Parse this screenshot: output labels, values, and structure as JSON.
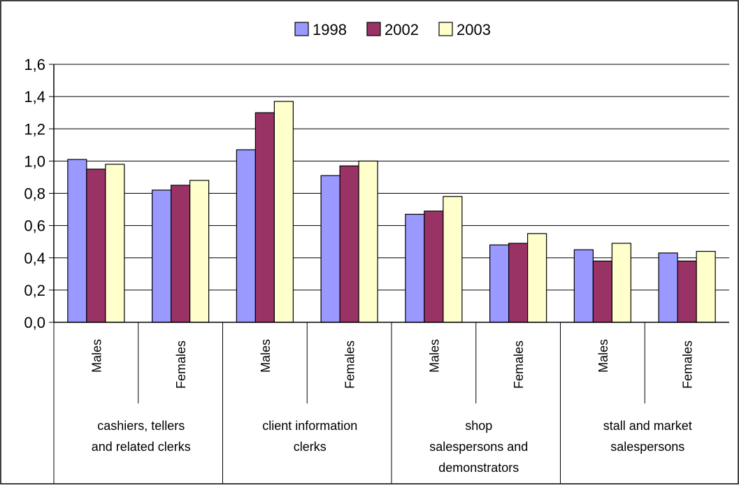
{
  "chart_data": {
    "type": "bar",
    "title": "",
    "xlabel": "",
    "ylabel": "",
    "ylim": [
      0,
      1.6
    ],
    "y_ticks": [
      "0,0",
      "0,2",
      "0,4",
      "0,6",
      "0,8",
      "1,0",
      "1,2",
      "1,4",
      "1,6"
    ],
    "grid": "horizontal",
    "legend_position": "top",
    "groups": [
      {
        "label_lines": [
          "cashiers, tellers",
          "and related clerks"
        ]
      },
      {
        "label_lines": [
          "client information",
          "clerks"
        ]
      },
      {
        "label_lines": [
          "shop",
          "salespersons and",
          "demonstrators"
        ]
      },
      {
        "label_lines": [
          "stall and market",
          "salespersons"
        ]
      }
    ],
    "categories": [
      "Males",
      "Females",
      "Males",
      "Females",
      "Males",
      "Females",
      "Males",
      "Females"
    ],
    "series": [
      {
        "name": "1998",
        "color": "#9999ff",
        "values": [
          1.01,
          0.82,
          1.07,
          0.91,
          0.67,
          0.48,
          0.45,
          0.43
        ]
      },
      {
        "name": "2002",
        "color": "#993366",
        "values": [
          0.95,
          0.85,
          1.3,
          0.97,
          0.69,
          0.49,
          0.38,
          0.38
        ]
      },
      {
        "name": "2003",
        "color": "#ffffcc",
        "values": [
          0.98,
          0.88,
          1.37,
          1.0,
          0.78,
          0.55,
          0.49,
          0.44
        ]
      }
    ]
  }
}
